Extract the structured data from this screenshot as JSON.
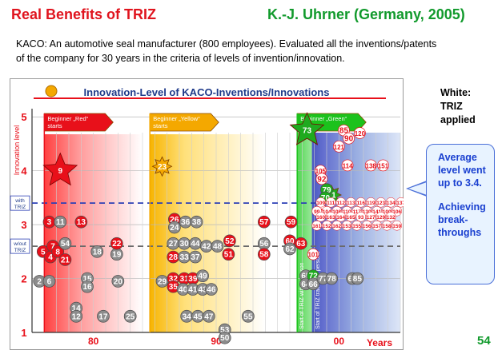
{
  "header": {
    "title_left": "Real Benefits of TRIZ",
    "title_right": "K.-J. Uhrner  (Germany, 2005)"
  },
  "subtitle": {
    "line1": "KACO: An automotive seal manufacturer (800 employees).   Evaluated all the inventions/patents",
    "line2": " of the company for 30 years in the criteria of levels of invention/innovation."
  },
  "side_note": {
    "line1": "White:",
    "line2": "TRIZ",
    "line3": "applied"
  },
  "callout": {
    "line1": "Average level went up to 3.4.",
    "line2": "Achieving break-throughs"
  },
  "page_number": "54",
  "chart_data": {
    "type": "scatter",
    "title": "Innovation-Level of KACO-Inventions/Innovations",
    "ylabel": "Innovation level",
    "xlabel": "Years",
    "y_ticks": [
      "1",
      "2",
      "3",
      "4",
      "5"
    ],
    "x_ticks": [
      "80",
      "90",
      "00"
    ],
    "xlim": [
      1975,
      2005
    ],
    "ylim": [
      1,
      5.3
    ],
    "grid": true,
    "reference_lines": [
      {
        "label": "with TRIZ",
        "y": 3.4
      },
      {
        "label": "w/out TRIZ",
        "y": 2.6
      }
    ],
    "phases": [
      {
        "label": "Beginner „Red“ starts",
        "color": "#e8101a"
      },
      {
        "label": "Beginner „Yellow“ starts",
        "color": "#f4a800"
      },
      {
        "label": "Beginner „Green“ starts",
        "color": "#1cc21c"
      }
    ],
    "vertical_labels": [
      "Start of TRIZ with 1 person",
      "Start of TRIZ training 4 persons"
    ],
    "colors": {
      "gray": "#8c8c8c",
      "red": "#e8101a",
      "white": "#ffffff",
      "green": "#1faa1f"
    },
    "points": [
      {
        "id": "9",
        "x": 1977.3,
        "y": 4.0,
        "color": "red",
        "shape": "star-large"
      },
      {
        "id": "23",
        "x": 1985.6,
        "y": 4.08,
        "color": "orange",
        "shape": "star"
      },
      {
        "id": "73",
        "x": 1997.4,
        "y": 4.75,
        "color": "green",
        "shape": "star-large"
      },
      {
        "id": "81",
        "x": 1999.4,
        "y": 3.55,
        "color": "green",
        "shape": "star"
      },
      {
        "id": "3",
        "x": 1976.4,
        "y": 3.05,
        "color": "red"
      },
      {
        "id": "11",
        "x": 1977.3,
        "y": 3.05,
        "color": "gray"
      },
      {
        "id": "13",
        "x": 1979.0,
        "y": 3.05,
        "color": "red"
      },
      {
        "id": "5",
        "x": 1975.9,
        "y": 2.5,
        "color": "red"
      },
      {
        "id": "7",
        "x": 1976.7,
        "y": 2.6,
        "color": "red"
      },
      {
        "id": "4",
        "x": 1976.5,
        "y": 2.4,
        "color": "red"
      },
      {
        "id": "8",
        "x": 1977.1,
        "y": 2.5,
        "color": "red"
      },
      {
        "id": "54",
        "x": 1977.7,
        "y": 2.65,
        "color": "gray"
      },
      {
        "id": "21",
        "x": 1977.7,
        "y": 2.35,
        "color": "red"
      },
      {
        "id": "2",
        "x": 1975.6,
        "y": 1.95,
        "color": "gray"
      },
      {
        "id": "6",
        "x": 1976.4,
        "y": 1.95,
        "color": "gray"
      },
      {
        "id": "18",
        "x": 1980.3,
        "y": 2.5,
        "color": "gray"
      },
      {
        "id": "19",
        "x": 1981.9,
        "y": 2.45,
        "color": "gray"
      },
      {
        "id": "22",
        "x": 1981.9,
        "y": 2.65,
        "color": "red"
      },
      {
        "id": "15",
        "x": 1979.5,
        "y": 2.0,
        "color": "gray"
      },
      {
        "id": "16",
        "x": 1979.5,
        "y": 1.85,
        "color": "gray"
      },
      {
        "id": "20",
        "x": 1982.0,
        "y": 1.95,
        "color": "gray"
      },
      {
        "id": "14",
        "x": 1978.6,
        "y": 1.45,
        "color": "gray"
      },
      {
        "id": "12",
        "x": 1978.6,
        "y": 1.3,
        "color": "gray"
      },
      {
        "id": "17",
        "x": 1980.8,
        "y": 1.3,
        "color": "gray"
      },
      {
        "id": "25",
        "x": 1983.0,
        "y": 1.3,
        "color": "gray"
      },
      {
        "id": "26",
        "x": 1986.6,
        "y": 3.1,
        "color": "red"
      },
      {
        "id": "24",
        "x": 1986.6,
        "y": 2.95,
        "color": "gray"
      },
      {
        "id": "36",
        "x": 1987.5,
        "y": 3.05,
        "color": "gray"
      },
      {
        "id": "38",
        "x": 1988.4,
        "y": 3.05,
        "color": "gray"
      },
      {
        "id": "27",
        "x": 1986.5,
        "y": 2.65,
        "color": "gray"
      },
      {
        "id": "30",
        "x": 1987.4,
        "y": 2.65,
        "color": "gray"
      },
      {
        "id": "44",
        "x": 1988.3,
        "y": 2.65,
        "color": "gray"
      },
      {
        "id": "42",
        "x": 1989.2,
        "y": 2.6,
        "color": "gray"
      },
      {
        "id": "48",
        "x": 1990.1,
        "y": 2.6,
        "color": "gray"
      },
      {
        "id": "28",
        "x": 1986.5,
        "y": 2.4,
        "color": "red"
      },
      {
        "id": "33",
        "x": 1987.4,
        "y": 2.4,
        "color": "gray"
      },
      {
        "id": "37",
        "x": 1988.3,
        "y": 2.4,
        "color": "gray"
      },
      {
        "id": "52",
        "x": 1991.1,
        "y": 2.7,
        "color": "red"
      },
      {
        "id": "51",
        "x": 1991.0,
        "y": 2.45,
        "color": "red"
      },
      {
        "id": "29",
        "x": 1985.6,
        "y": 1.95,
        "color": "gray"
      },
      {
        "id": "32",
        "x": 1986.5,
        "y": 2.0,
        "color": "red"
      },
      {
        "id": "31",
        "x": 1987.4,
        "y": 2.0,
        "color": "red"
      },
      {
        "id": "39",
        "x": 1988.1,
        "y": 2.0,
        "color": "red"
      },
      {
        "id": "49",
        "x": 1988.9,
        "y": 2.05,
        "color": "gray"
      },
      {
        "id": "35",
        "x": 1986.5,
        "y": 1.85,
        "color": "red"
      },
      {
        "id": "40",
        "x": 1987.3,
        "y": 1.8,
        "color": "gray"
      },
      {
        "id": "41",
        "x": 1988.1,
        "y": 1.8,
        "color": "gray"
      },
      {
        "id": "43",
        "x": 1988.9,
        "y": 1.8,
        "color": "gray"
      },
      {
        "id": "46",
        "x": 1989.6,
        "y": 1.8,
        "color": "gray"
      },
      {
        "id": "34",
        "x": 1987.6,
        "y": 1.3,
        "color": "gray"
      },
      {
        "id": "45",
        "x": 1988.5,
        "y": 1.3,
        "color": "gray"
      },
      {
        "id": "47",
        "x": 1989.4,
        "y": 1.3,
        "color": "gray"
      },
      {
        "id": "55",
        "x": 1992.6,
        "y": 1.3,
        "color": "gray"
      },
      {
        "id": "53",
        "x": 1990.7,
        "y": 1.05,
        "color": "gray"
      },
      {
        "id": "50",
        "x": 1990.7,
        "y": 0.9,
        "color": "gray"
      },
      {
        "id": "57",
        "x": 1993.9,
        "y": 3.05,
        "color": "red"
      },
      {
        "id": "59",
        "x": 1996.1,
        "y": 3.05,
        "color": "red"
      },
      {
        "id": "56",
        "x": 1993.9,
        "y": 2.65,
        "color": "gray"
      },
      {
        "id": "58",
        "x": 1993.9,
        "y": 2.45,
        "color": "red"
      },
      {
        "id": "60",
        "x": 1996.0,
        "y": 2.7,
        "color": "red"
      },
      {
        "id": "62",
        "x": 1996.0,
        "y": 2.55,
        "color": "gray"
      },
      {
        "id": "63",
        "x": 1996.9,
        "y": 2.65,
        "color": "red"
      },
      {
        "id": "101",
        "x": 1997.9,
        "y": 2.45,
        "color": "white"
      },
      {
        "id": "65",
        "x": 1997.3,
        "y": 2.05,
        "color": "gray"
      },
      {
        "id": "64",
        "x": 1997.3,
        "y": 1.9,
        "color": "gray"
      },
      {
        "id": "72",
        "x": 1997.9,
        "y": 2.05,
        "color": "green"
      },
      {
        "id": "66",
        "x": 1997.9,
        "y": 1.9,
        "color": "gray"
      },
      {
        "id": "77",
        "x": 1998.7,
        "y": 2.0,
        "color": "gray"
      },
      {
        "id": "78",
        "x": 1999.4,
        "y": 2.0,
        "color": "gray"
      },
      {
        "id": "68",
        "x": 2001.1,
        "y": 2.0,
        "color": "gray"
      },
      {
        "id": "85",
        "x": 2001.5,
        "y": 2.0,
        "color": "gray"
      },
      {
        "id": "105",
        "x": 1998.5,
        "y": 4.0,
        "color": "white"
      },
      {
        "id": "92",
        "x": 1998.6,
        "y": 3.85,
        "color": "white"
      },
      {
        "id": "83",
        "x": 1998.7,
        "y": 3.25,
        "color": "white"
      },
      {
        "id": "79",
        "x": 1999.0,
        "y": 3.65,
        "color": "green"
      },
      {
        "id": "70",
        "x": 1998.9,
        "y": 3.5,
        "color": "green"
      },
      {
        "id": "85b",
        "x": 2000.4,
        "y": 4.75,
        "color": "white",
        "label": "85"
      },
      {
        "id": "90",
        "x": 2000.8,
        "y": 4.6,
        "color": "white"
      },
      {
        "id": "120",
        "x": 2001.7,
        "y": 4.7,
        "color": "white"
      },
      {
        "id": "121",
        "x": 2000.0,
        "y": 4.45,
        "color": "white"
      },
      {
        "id": "114",
        "x": 2000.7,
        "y": 4.1,
        "color": "white"
      },
      {
        "id": "138",
        "x": 2002.6,
        "y": 4.1,
        "color": "white"
      },
      {
        "id": "151",
        "x": 2003.6,
        "y": 4.1,
        "color": "white"
      }
    ],
    "cluster_labels": [
      "99",
      "104",
      "108",
      "110",
      "117",
      "130",
      "141",
      "100",
      "106",
      "109",
      "111",
      "112",
      "113",
      "116",
      "119",
      "123",
      "134",
      "137",
      "161",
      "152",
      "162",
      "153",
      "155",
      "156",
      "157",
      "158",
      "159",
      "160",
      "163",
      "164",
      "165",
      "93",
      "127",
      "129",
      "132"
    ]
  }
}
